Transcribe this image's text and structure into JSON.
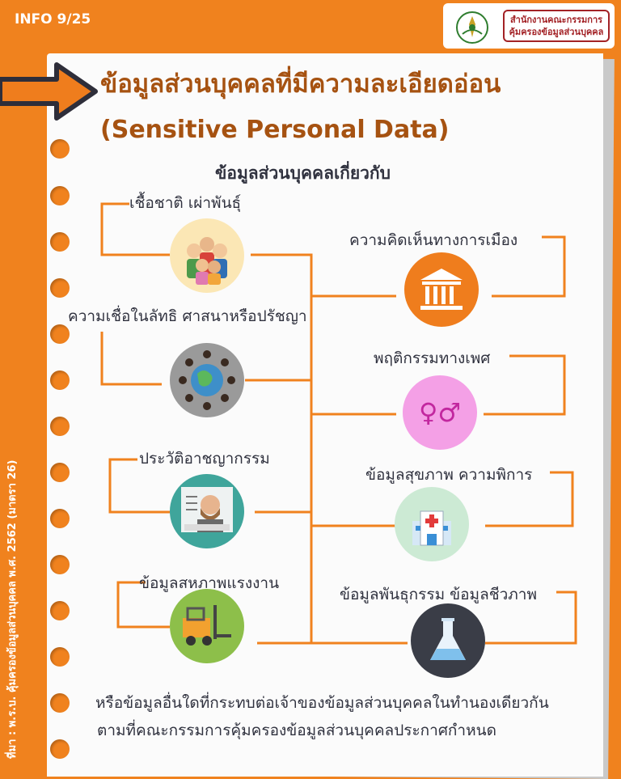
{
  "badge": "INFO 9/25",
  "org": {
    "line1": "สำนักงานคณะกรรมการ",
    "line2": "คุ้มครองข้อมูลส่วนบุคคล"
  },
  "title": {
    "thai": "ข้อมูลส่วนบุคคลที่มีความละเอียดอ่อน",
    "english": "(Sensitive Personal Data)"
  },
  "subtitle": "ข้อมูลส่วนบุคคลเกี่ยวกับ",
  "left_items": [
    {
      "label": "เชื้อชาติ เผ่าพันธุ์",
      "icon": "ethnic-people-icon"
    },
    {
      "label": "ความเชื่อในลัทธิ ศาสนาหรือปรัชญา",
      "icon": "globe-religions-icon"
    },
    {
      "label": "ประวัติอาชญากรรม",
      "icon": "criminal-mugshot-icon"
    },
    {
      "label": "ข้อมูลสหภาพแรงงาน",
      "icon": "forklift-icon"
    }
  ],
  "right_items": [
    {
      "label": "ความคิดเห็นทางการเมือง",
      "icon": "government-building-icon"
    },
    {
      "label": "พฤติกรรมทางเพศ",
      "icon": "gender-symbols-icon"
    },
    {
      "label": "ข้อมูลสุขภาพ ความพิการ",
      "icon": "hospital-icon"
    },
    {
      "label": "ข้อมูลพันธุกรรม ข้อมูลชีวภาพ",
      "icon": "lab-flask-icon"
    }
  ],
  "gender_glyph": "♀♂",
  "footer": {
    "line1": "หรือข้อมูลอื่นใดที่กระทบต่อเจ้าของข้อมูลส่วนบุคคลในทำนองเดียวกัน",
    "line2": "ตามที่คณะกรรมการคุ้มครองข้อมูลส่วนบุคคลประกาศกำหนด"
  },
  "source": "ที่มา : พ.ร.บ. คุ้มครองข้อมูลส่วนบุคคล พ.ศ. 2562 (มาตรา 26)",
  "colors": {
    "orange": "#f0821e",
    "title_brown": "#a65211",
    "text_dark": "#30323f",
    "org_red": "#a32226"
  }
}
